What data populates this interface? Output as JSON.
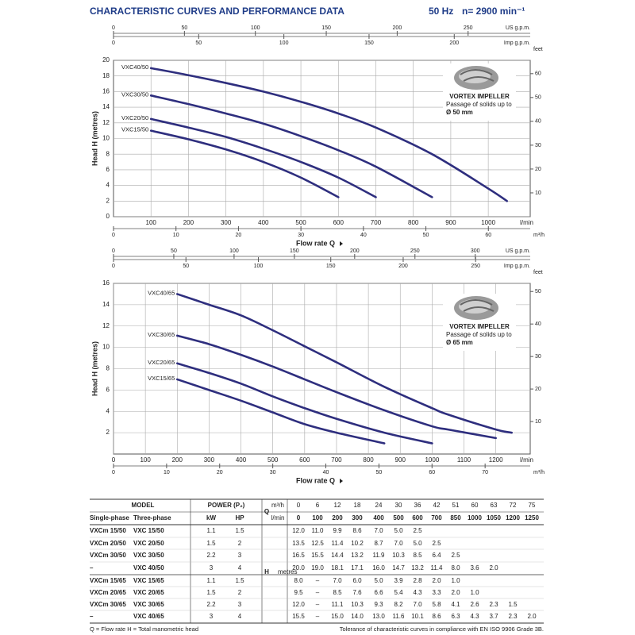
{
  "header": {
    "title": "CHARACTERISTIC CURVES AND PERFORMANCE DATA",
    "frequency": "50 Hz",
    "speed": "n= 2900 min⁻¹"
  },
  "chart_data": [
    {
      "type": "line",
      "ylabel": "Head H (metres)",
      "xlabel": "Flow rate Q",
      "xunit": "l/min",
      "xlim": [
        0,
        1112
      ],
      "xticks": [
        100,
        200,
        300,
        400,
        500,
        600,
        700,
        800,
        900,
        1000
      ],
      "ylim": [
        0,
        20
      ],
      "yticks": [
        0,
        2,
        4,
        6,
        8,
        10,
        12,
        14,
        16,
        18,
        20
      ],
      "grid": true,
      "x2label": "US g.p.m.",
      "x2lim": [
        0,
        293.8
      ],
      "x2ticks": [
        0,
        50,
        100,
        150,
        200,
        250
      ],
      "x3label": "Imp g.p.m.",
      "x3lim": [
        0,
        244.6
      ],
      "x3ticks": [
        0,
        50,
        100,
        150,
        200
      ],
      "x4label": "m³/h",
      "x4lim": [
        0,
        66.7
      ],
      "x4ticks": [
        0,
        10,
        20,
        30,
        40,
        50,
        60
      ],
      "y2label": "feet",
      "y2lim": [
        0,
        65.6
      ],
      "y2ticks": [
        10,
        20,
        30,
        40,
        50,
        60
      ],
      "annotation": {
        "title": "VORTEX IMPELLER",
        "text": "Passage of solids up to",
        "size": "Ø 50 mm"
      },
      "series": [
        {
          "name": "VXC40/50",
          "color": "#2e2e7e",
          "x": [
            100,
            200,
            300,
            400,
            500,
            600,
            700,
            850,
            1000,
            1050
          ],
          "values": [
            19.0,
            18.1,
            17.1,
            16.0,
            14.7,
            13.2,
            11.4,
            8.0,
            3.6,
            2.0
          ]
        },
        {
          "name": "VXC30/50",
          "color": "#2e2e7e",
          "x": [
            100,
            200,
            300,
            400,
            500,
            600,
            700,
            850
          ],
          "values": [
            15.5,
            14.4,
            13.2,
            11.9,
            10.3,
            8.5,
            6.4,
            2.5
          ]
        },
        {
          "name": "VXC20/50",
          "color": "#2e2e7e",
          "x": [
            100,
            200,
            300,
            400,
            500,
            600,
            700
          ],
          "values": [
            12.5,
            11.4,
            10.2,
            8.7,
            7.0,
            5.0,
            2.5
          ]
        },
        {
          "name": "VXC15/50",
          "color": "#2e2e7e",
          "x": [
            100,
            200,
            300,
            400,
            500,
            600
          ],
          "values": [
            11.0,
            9.9,
            8.6,
            7.0,
            5.0,
            2.5
          ]
        }
      ]
    },
    {
      "type": "line",
      "ylabel": "Head H (metres)",
      "xlabel": "Flow rate Q",
      "xunit": "l/min",
      "xlim": [
        0,
        1308
      ],
      "xticks": [
        0,
        100,
        200,
        300,
        400,
        500,
        600,
        700,
        800,
        900,
        1000,
        1100,
        1200
      ],
      "ylim": [
        0,
        16
      ],
      "yticks": [
        2,
        4,
        6,
        8,
        10,
        12,
        14,
        16
      ],
      "grid": true,
      "x2label": "US g.p.m.",
      "x2lim": [
        0,
        345.6
      ],
      "x2ticks": [
        0,
        50,
        100,
        150,
        200,
        250,
        300
      ],
      "x3label": "Imp g.p.m.",
      "x3lim": [
        0,
        287.7
      ],
      "x3ticks": [
        0,
        50,
        100,
        150,
        200,
        250
      ],
      "x4label": "m³/h",
      "x4lim": [
        0,
        78.5
      ],
      "x4ticks": [
        0,
        10,
        20,
        30,
        40,
        50,
        60,
        70
      ],
      "y2label": "feet",
      "y2lim": [
        0,
        52.5
      ],
      "y2ticks": [
        10,
        20,
        30,
        40,
        50
      ],
      "annotation": {
        "title": "VORTEX IMPELLER",
        "text": "Passage of solids up to",
        "size": "Ø 65 mm"
      },
      "series": [
        {
          "name": "VXC40/65",
          "color": "#2e2e7e",
          "x": [
            200,
            300,
            400,
            500,
            600,
            700,
            850,
            1000,
            1050,
            1200,
            1250
          ],
          "values": [
            15.0,
            14.0,
            13.0,
            11.6,
            10.1,
            8.6,
            6.3,
            4.3,
            3.7,
            2.3,
            2.0
          ]
        },
        {
          "name": "VXC30/65",
          "color": "#2e2e7e",
          "x": [
            200,
            300,
            400,
            500,
            600,
            700,
            850,
            1000,
            1050,
            1200
          ],
          "values": [
            11.1,
            10.3,
            9.3,
            8.2,
            7.0,
            5.8,
            4.1,
            2.6,
            2.3,
            1.5
          ]
        },
        {
          "name": "VXC20/65",
          "color": "#2e2e7e",
          "x": [
            200,
            300,
            400,
            500,
            600,
            700,
            850,
            1000
          ],
          "values": [
            8.5,
            7.6,
            6.6,
            5.4,
            4.3,
            3.3,
            2.0,
            1.0
          ]
        },
        {
          "name": "VXC15/65",
          "color": "#2e2e7e",
          "x": [
            200,
            300,
            400,
            500,
            600,
            700,
            850
          ],
          "values": [
            7.0,
            6.0,
            5.0,
            3.9,
            2.8,
            2.0,
            1.0
          ]
        }
      ]
    }
  ],
  "table": {
    "header": {
      "model": "MODEL",
      "power": "POWER (P₂)",
      "single_phase": "Single-phase",
      "three_phase": "Three-phase",
      "kw": "kW",
      "hp": "HP",
      "q": "Q",
      "m3h": "m³/h",
      "lmin": "l/min",
      "h": "H",
      "metres": "metres"
    },
    "flow_m3h": [
      "0",
      "6",
      "12",
      "18",
      "24",
      "30",
      "36",
      "42",
      "51",
      "60",
      "63",
      "72",
      "75"
    ],
    "flow_lmin": [
      "0",
      "100",
      "200",
      "300",
      "400",
      "500",
      "600",
      "700",
      "850",
      "1000",
      "1050",
      "1200",
      "1250"
    ],
    "rows": [
      {
        "single": "VXCm 15/50",
        "three": "VXC 15/50",
        "kw": "1.1",
        "hp": "1.5",
        "heads": [
          "12.0",
          "11.0",
          "9.9",
          "8.6",
          "7.0",
          "5.0",
          "2.5"
        ]
      },
      {
        "single": "VXCm 20/50",
        "three": "VXC 20/50",
        "kw": "1.5",
        "hp": "2",
        "heads": [
          "13.5",
          "12.5",
          "11.4",
          "10.2",
          "8.7",
          "7.0",
          "5.0",
          "2.5"
        ]
      },
      {
        "single": "VXCm 30/50",
        "three": "VXC 30/50",
        "kw": "2.2",
        "hp": "3",
        "heads": [
          "16.5",
          "15.5",
          "14.4",
          "13.2",
          "11.9",
          "10.3",
          "8.5",
          "6.4",
          "2.5"
        ]
      },
      {
        "single": "–",
        "three": "VXC 40/50",
        "kw": "3",
        "hp": "4",
        "heads": [
          "20.0",
          "19.0",
          "18.1",
          "17.1",
          "16.0",
          "14.7",
          "13.2",
          "11.4",
          "8.0",
          "3.6",
          "2.0"
        ]
      },
      {
        "single": "VXCm 15/65",
        "three": "VXC 15/65",
        "kw": "1.1",
        "hp": "1.5",
        "heads": [
          "8.0",
          "–",
          "7.0",
          "6.0",
          "5.0",
          "3.9",
          "2.8",
          "2.0",
          "1.0"
        ]
      },
      {
        "single": "VXCm 20/65",
        "three": "VXC 20/65",
        "kw": "1.5",
        "hp": "2",
        "heads": [
          "9.5",
          "–",
          "8.5",
          "7.6",
          "6.6",
          "5.4",
          "4.3",
          "3.3",
          "2.0",
          "1.0"
        ]
      },
      {
        "single": "VXCm 30/65",
        "three": "VXC 30/65",
        "kw": "2.2",
        "hp": "3",
        "heads": [
          "12.0",
          "–",
          "11.1",
          "10.3",
          "9.3",
          "8.2",
          "7.0",
          "5.8",
          "4.1",
          "2.6",
          "2.3",
          "1.5"
        ]
      },
      {
        "single": "–",
        "three": "VXC 40/65",
        "kw": "3",
        "hp": "4",
        "heads": [
          "15.5",
          "–",
          "15.0",
          "14.0",
          "13.0",
          "11.6",
          "10.1",
          "8.6",
          "6.3",
          "4.3",
          "3.7",
          "2.3",
          "2.0"
        ]
      }
    ]
  },
  "footer": {
    "legend": "Q = Flow rate   H = Total manometric head",
    "note": "Tolerance of characteristic curves in compliance with EN ISO 9906 Grade 3B."
  }
}
